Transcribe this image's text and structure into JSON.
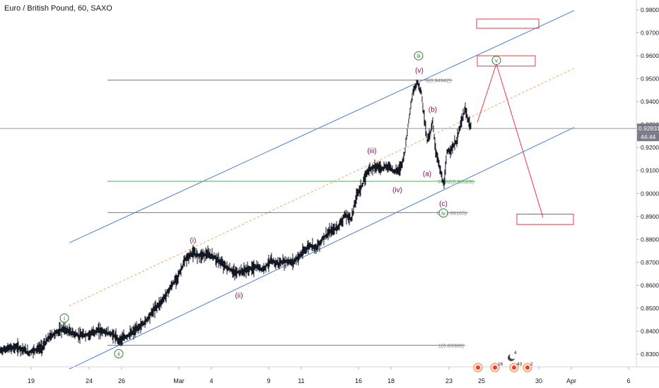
{
  "chart_data": {
    "type": "candlestick",
    "title": "Euro / British Pound, 60, SAXO",
    "y_axis": {
      "side": "right",
      "ylim": [
        0.8215,
        0.9825
      ],
      "ticks": [
        0.83,
        0.84,
        0.85,
        0.86,
        0.87,
        0.88,
        0.89,
        0.9,
        0.91,
        0.92,
        0.93,
        0.94,
        0.95,
        0.96,
        0.97,
        0.98
      ],
      "tick_labels": [
        "0.83000",
        "0.84000",
        "0.85000",
        "0.86000",
        "0.87000",
        "0.88000",
        "0.89000",
        "0.90000",
        "0.91000",
        "0.92000",
        "0.93000",
        "0.94000",
        "0.95000",
        "0.96000",
        "0.97000",
        "0.98000"
      ]
    },
    "x_axis": {
      "xlim": [
        0,
        932
      ],
      "ticks": [
        {
          "label": "19",
          "x": 44
        },
        {
          "label": "24",
          "x": 126
        },
        {
          "label": "26",
          "x": 172
        },
        {
          "label": "Mar",
          "x": 253
        },
        {
          "label": "4",
          "x": 299
        },
        {
          "label": "9",
          "x": 380
        },
        {
          "label": "11",
          "x": 426
        },
        {
          "label": "16",
          "x": 507
        },
        {
          "label": "18",
          "x": 553
        },
        {
          "label": "23",
          "x": 635
        },
        {
          "label": "25",
          "x": 681
        },
        {
          "label": "30",
          "x": 762
        },
        {
          "label": "Apr",
          "x": 808
        },
        {
          "label": "6",
          "x": 889
        }
      ]
    },
    "price_path": [
      [
        0,
        0.8315
      ],
      [
        12,
        0.8325
      ],
      [
        24,
        0.833
      ],
      [
        34,
        0.832
      ],
      [
        40,
        0.8305
      ],
      [
        50,
        0.832
      ],
      [
        60,
        0.833
      ],
      [
        70,
        0.8375
      ],
      [
        80,
        0.8395
      ],
      [
        90,
        0.841
      ],
      [
        100,
        0.8395
      ],
      [
        112,
        0.838
      ],
      [
        125,
        0.8385
      ],
      [
        140,
        0.8405
      ],
      [
        150,
        0.8395
      ],
      [
        160,
        0.8385
      ],
      [
        168,
        0.836
      ],
      [
        178,
        0.8375
      ],
      [
        190,
        0.84
      ],
      [
        205,
        0.844
      ],
      [
        218,
        0.8495
      ],
      [
        230,
        0.8535
      ],
      [
        240,
        0.8585
      ],
      [
        252,
        0.864
      ],
      [
        262,
        0.871
      ],
      [
        272,
        0.874
      ],
      [
        282,
        0.873
      ],
      [
        292,
        0.8735
      ],
      [
        302,
        0.8725
      ],
      [
        312,
        0.87
      ],
      [
        322,
        0.8675
      ],
      [
        332,
        0.8655
      ],
      [
        342,
        0.866
      ],
      [
        352,
        0.867
      ],
      [
        362,
        0.868
      ],
      [
        372,
        0.867
      ],
      [
        382,
        0.8705
      ],
      [
        394,
        0.8695
      ],
      [
        404,
        0.8705
      ],
      [
        414,
        0.87
      ],
      [
        426,
        0.8735
      ],
      [
        438,
        0.8775
      ],
      [
        448,
        0.8765
      ],
      [
        458,
        0.881
      ],
      [
        468,
        0.8835
      ],
      [
        478,
        0.8855
      ],
      [
        488,
        0.8905
      ],
      [
        497,
        0.889
      ],
      [
        505,
        0.9
      ],
      [
        513,
        0.904
      ],
      [
        520,
        0.91
      ],
      [
        530,
        0.912
      ],
      [
        540,
        0.911
      ],
      [
        550,
        0.912
      ],
      [
        558,
        0.9095
      ],
      [
        566,
        0.911
      ],
      [
        572,
        0.917
      ],
      [
        578,
        0.932
      ],
      [
        584,
        0.944
      ],
      [
        590,
        0.9485
      ],
      [
        596,
        0.944
      ],
      [
        600,
        0.933
      ],
      [
        604,
        0.923
      ],
      [
        608,
        0.926
      ],
      [
        612,
        0.931
      ],
      [
        616,
        0.919
      ],
      [
        620,
        0.914
      ],
      [
        624,
        0.908
      ],
      [
        628,
        0.903
      ],
      [
        632,
        0.918
      ],
      [
        640,
        0.92
      ],
      [
        646,
        0.923
      ],
      [
        652,
        0.931
      ],
      [
        658,
        0.9365
      ],
      [
        662,
        0.932
      ],
      [
        666,
        0.929
      ]
    ],
    "levels": [
      {
        "label": "0(0.94942)",
        "value": 0.94942,
        "x_start": 152,
        "x_end": 640,
        "color": "#787b86"
      },
      {
        "label": "0.382(0.90529)",
        "value": 0.90529,
        "x_start": 152,
        "x_end": 672,
        "color": "#4caf50"
      },
      {
        "label": "0.5(0.89165)",
        "value": 0.89165,
        "x_start": 152,
        "x_end": 662,
        "color": "#787b86"
      },
      {
        "label": "1(0.83388)",
        "value": 0.83388,
        "x_start": 152,
        "x_end": 658,
        "color": "#787b86"
      },
      {
        "label": "",
        "value": 0.92831,
        "x_start": 0,
        "x_end": 900,
        "color": "#9598a1"
      }
    ],
    "channel": {
      "upper": [
        [
          98,
          0.8785
        ],
        [
          812,
          0.9797
        ]
      ],
      "lower": [
        [
          98,
          0.8235
        ],
        [
          812,
          0.9288
        ]
      ],
      "mid": [
        [
          98,
          0.851
        ],
        [
          812,
          0.9545
        ]
      ],
      "line_color": "#4a7fd6",
      "mid_color": "#f5a25d"
    },
    "projection": [
      [
        675,
        0.931
      ],
      [
        702,
        0.9565
      ],
      [
        768,
        0.8895
      ]
    ],
    "projection_color": "#f23645",
    "target_boxes": [
      {
        "x0": 674,
        "x1": 762,
        "y_top": 0.976,
        "y_bottom": 0.972
      },
      {
        "x0": 675,
        "x1": 757,
        "y_top": 0.96,
        "y_bottom": 0.9555
      },
      {
        "x0": 731,
        "x1": 811,
        "y_top": 0.891,
        "y_bottom": 0.8865
      }
    ],
    "wave_labels": [
      {
        "text": "i",
        "x": 91,
        "value": 0.8457,
        "circled": true,
        "color": "#2e7d32"
      },
      {
        "text": "ii",
        "x": 168,
        "value": 0.8302,
        "circled": true,
        "color": "#2e7d32"
      },
      {
        "text": "iii",
        "x": 592,
        "value": 0.96,
        "circled": true,
        "color": "#2e7d32"
      },
      {
        "text": "iv",
        "x": 627,
        "value": 0.8915,
        "circled": true,
        "color": "#2e7d32"
      },
      {
        "text": "v",
        "x": 702,
        "value": 0.958,
        "circled": true,
        "color": "#2e7d32"
      },
      {
        "text": "(i)",
        "x": 273,
        "value": 0.8795,
        "circled": false,
        "color": "#880e4f"
      },
      {
        "text": "(ii)",
        "x": 338,
        "value": 0.8555,
        "circled": false,
        "color": "#880e4f"
      },
      {
        "text": "(iii)",
        "x": 526,
        "value": 0.9185,
        "circled": false,
        "color": "#880e4f"
      },
      {
        "text": "(iv)",
        "x": 562,
        "value": 0.9015,
        "circled": false,
        "color": "#880e4f"
      },
      {
        "text": "(v)",
        "x": 593,
        "value": 0.9535,
        "circled": false,
        "color": "#880e4f"
      },
      {
        "text": "(a)",
        "x": 604,
        "value": 0.9085,
        "circled": false,
        "color": "#880e4f"
      },
      {
        "text": "(b)",
        "x": 612,
        "value": 0.9365,
        "circled": false,
        "color": "#880e4f"
      },
      {
        "text": "(c)",
        "x": 627,
        "value": 0.8955,
        "circled": false,
        "color": "#880e4f"
      }
    ],
    "last_price": {
      "label": "0.92831",
      "value": 0.92831,
      "timer": "44:44"
    },
    "events": [
      {
        "x": 676,
        "label": ""
      },
      {
        "x": 700,
        "label": "16"
      },
      {
        "x": 727,
        "label": "43"
      },
      {
        "x": 746,
        "label": "2"
      }
    ],
    "event_badge": {
      "x": 723,
      "label": "4"
    }
  }
}
